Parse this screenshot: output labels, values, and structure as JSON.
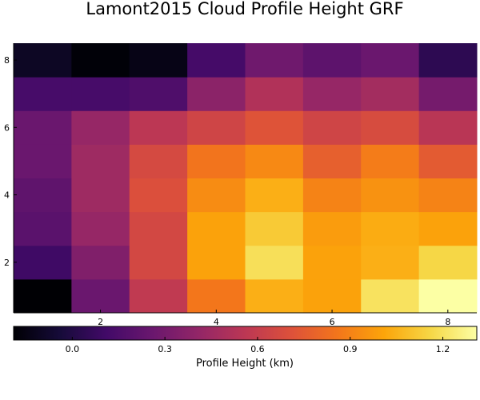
{
  "chart_data": {
    "type": "heatmap",
    "title": "Lamont2015 Cloud Profile Height GRF",
    "xlabel": "",
    "ylabel": "",
    "x": [
      1,
      2,
      3,
      4,
      5,
      6,
      7,
      8
    ],
    "y": [
      1,
      2,
      3,
      4,
      5,
      6,
      7,
      8
    ],
    "xlim": [
      0.5,
      8.5
    ],
    "ylim": [
      0.5,
      8.5
    ],
    "x_ticks": [
      "2",
      "4",
      "6",
      "8"
    ],
    "y_ticks": [
      "2",
      "4",
      "6",
      "8"
    ],
    "values_by_row_bottom_to_top": [
      [
        -0.19,
        0.26,
        0.58,
        0.86,
        1.04,
        1.0,
        1.2,
        1.31
      ],
      [
        0.1,
        0.34,
        0.66,
        1.0,
        1.19,
        1.0,
        1.04,
        1.16
      ],
      [
        0.2,
        0.42,
        0.66,
        1.0,
        1.12,
        0.98,
        1.03,
        1.0
      ],
      [
        0.22,
        0.45,
        0.7,
        0.93,
        1.04,
        0.9,
        0.95,
        0.9
      ],
      [
        0.26,
        0.45,
        0.67,
        0.85,
        0.92,
        0.77,
        0.88,
        0.75
      ],
      [
        0.26,
        0.42,
        0.56,
        0.64,
        0.72,
        0.64,
        0.68,
        0.55
      ],
      [
        0.13,
        0.13,
        0.16,
        0.38,
        0.52,
        0.42,
        0.47,
        0.3
      ],
      [
        -0.1,
        -0.18,
        -0.14,
        0.12,
        0.28,
        0.21,
        0.26,
        0.04
      ]
    ],
    "colorbar": {
      "label": "Profile Height (km)",
      "range": [
        -0.19,
        1.31
      ],
      "ticks": [
        "0.0",
        "0.3",
        "0.6",
        "0.9",
        "1.2"
      ],
      "tick_values": [
        0.0,
        0.3,
        0.6,
        0.9,
        1.2
      ],
      "colormap": "inferno"
    },
    "grid": false
  }
}
